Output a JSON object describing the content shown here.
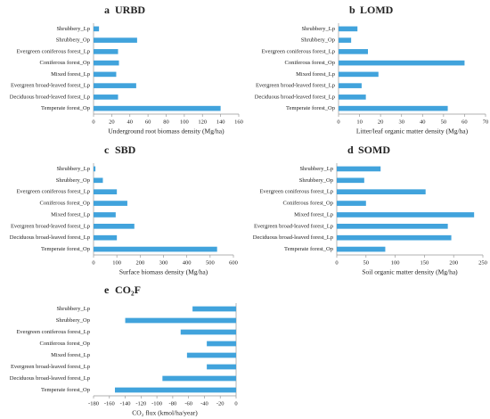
{
  "chart_data": [
    {
      "type": "bar",
      "label": "a",
      "title": "URBD",
      "x_label": "Underground root biomass density (Mg/ha)",
      "categories": [
        "Shrubbery_Lp",
        "Shrubbery_Op",
        "Evergreen coniferous forest_Lp",
        "Coniferous forest_Op",
        "Mixed forest_Lp",
        "Evergreen broad-leaved forest_Lp",
        "Deciduous broad-leaved forest_Lp",
        "Temperate forest_Op"
      ],
      "values": [
        6,
        48,
        27,
        28,
        25,
        47,
        27,
        140
      ],
      "color": "#41a3dc",
      "xlim": [
        0,
        160
      ],
      "xticks": [
        0,
        20,
        40,
        60,
        80,
        100,
        120,
        140,
        160
      ]
    },
    {
      "type": "bar",
      "label": "b",
      "title": "LOMD",
      "x_label": "Litter/leaf organic matter density (Mg/ha)",
      "categories": [
        "Shrubbery_Lp",
        "Shrubbery_Op",
        "Evergreen coniferous forest_Lp",
        "Coniferous forest_Op",
        "Mixed forest_Lp",
        "Evergreen broad-leaved forest_Lp",
        "Deciduous broad-leaved forest_Lp",
        "Temperate forest_Op"
      ],
      "values": [
        9,
        6,
        14,
        60,
        19,
        11,
        13,
        52
      ],
      "color": "#41a3dc",
      "xlim": [
        0,
        70
      ],
      "xticks": [
        0,
        10,
        20,
        30,
        40,
        50,
        60,
        70
      ]
    },
    {
      "type": "bar",
      "label": "c",
      "title": "SBD",
      "x_label": "Surface biomass density (Mg/ha)",
      "categories": [
        "Shrubbery_Lp",
        "Shrubbery_Op",
        "Evergreen coniferous forest_Lp",
        "Coniferous forest_Op",
        "Mixed forest_Lp",
        "Evergreen broad-leaved forest_Lp",
        "Deciduous broad-leaved forest_Lp",
        "Temperate forest_Op"
      ],
      "values": [
        8,
        40,
        100,
        145,
        95,
        175,
        100,
        530
      ],
      "color": "#41a3dc",
      "xlim": [
        0,
        600
      ],
      "xticks": [
        0,
        100,
        200,
        300,
        400,
        500,
        600
      ]
    },
    {
      "type": "bar",
      "label": "d",
      "title": "SOMD",
      "x_label": "Soil organic matter density (Mg/ha)",
      "categories": [
        "Shrubbery_Lp",
        "Shrubbery_Op",
        "Evergreen coniferous forest_Lp",
        "Coniferous forest_Op",
        "Mixed forest_Lp",
        "Evergreen broad-leaved forest_Lp",
        "Deciduous broad-leaved forest_Lp",
        "Temperate forest_Op"
      ],
      "values": [
        75,
        47,
        152,
        50,
        235,
        190,
        196,
        83
      ],
      "color": "#41a3dc",
      "xlim": [
        0,
        250
      ],
      "xticks": [
        0,
        50,
        100,
        150,
        200,
        250
      ]
    },
    {
      "type": "bar",
      "label": "e",
      "title": "CO₂F",
      "x_label": "CO₂ flux (kmol/ha/year)",
      "categories": [
        "Shrubbery_Lp",
        "Shrubbery_Op",
        "Evergreen coniferous forest_Lp",
        "Coniferous forest_Op",
        "Mixed forest_Lp",
        "Evergreen broad-leaved forest_Lp",
        "Deciduous broad-leaved forest_Lp",
        "Temperate forest_Op"
      ],
      "values": [
        -55,
        -140,
        -70,
        -37,
        -62,
        -37,
        -93,
        -153
      ],
      "color": "#41a3dc",
      "xlim": [
        -180,
        0
      ],
      "xticks": [
        -180,
        -160,
        -140,
        -120,
        -100,
        -80,
        -60,
        -40,
        -20,
        0
      ]
    }
  ]
}
